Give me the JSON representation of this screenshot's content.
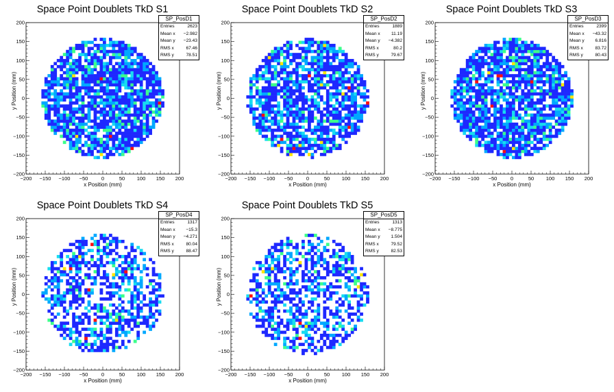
{
  "colors": {
    "cell_palette": [
      "#1e28ff",
      "#00a8ff",
      "#18dcf0",
      "#3cff8c",
      "#ffe600",
      "#ff1010"
    ],
    "axis": "#000000",
    "background": "#ffffff"
  },
  "chart_data": [
    {
      "type": "heatmap",
      "title": "Space Point Doublets TkD S1",
      "xlabel": "x Position (mm)",
      "ylabel": "y Position (mm)",
      "xlim": [
        -200,
        200
      ],
      "ylim": [
        -200,
        200
      ],
      "xticks": [
        -200,
        -150,
        -100,
        -50,
        0,
        50,
        100,
        150,
        200
      ],
      "yticks": [
        -200,
        -150,
        -100,
        -50,
        0,
        50,
        100,
        150,
        200
      ],
      "region": "disk of radius ~160 mm, 8 mm bins",
      "legend": "top-right",
      "stats": {
        "name": "SP_PosD1",
        "rows": [
          {
            "label": "Entries",
            "value": "2623"
          },
          {
            "label": "Mean x",
            "value": "−2.982"
          },
          {
            "label": "Mean y",
            "value": "−23.43"
          },
          {
            "label": "RMS x",
            "value": "67.46"
          },
          {
            "label": "RMS y",
            "value": "78.51"
          }
        ]
      }
    },
    {
      "type": "heatmap",
      "title": "Space Point Doublets TkD S2",
      "xlabel": "x Position (mm)",
      "ylabel": "y Position (mm)",
      "xlim": [
        -200,
        200
      ],
      "ylim": [
        -200,
        200
      ],
      "xticks": [
        -200,
        -150,
        -100,
        -50,
        0,
        50,
        100,
        150,
        200
      ],
      "yticks": [
        -200,
        -150,
        -100,
        -50,
        0,
        50,
        100,
        150,
        200
      ],
      "region": "disk of radius ~160 mm, 8 mm bins",
      "legend": "top-right",
      "stats": {
        "name": "SP_PosD2",
        "rows": [
          {
            "label": "Entries",
            "value": "1889"
          },
          {
            "label": "Mean x",
            "value": "11.19"
          },
          {
            "label": "Mean y",
            "value": "−4.382"
          },
          {
            "label": "RMS x",
            "value": "80.2"
          },
          {
            "label": "RMS y",
            "value": "79.67"
          }
        ]
      }
    },
    {
      "type": "heatmap",
      "title": "Space Point Doublets TkD S3",
      "xlabel": "x Position (mm)",
      "ylabel": "y Position (mm)",
      "xlim": [
        -200,
        200
      ],
      "ylim": [
        -200,
        200
      ],
      "xticks": [
        -200,
        -150,
        -100,
        -50,
        0,
        50,
        100,
        150,
        200
      ],
      "yticks": [
        -200,
        -150,
        -100,
        -50,
        0,
        50,
        100,
        150,
        200
      ],
      "region": "disk of radius ~160 mm, 8 mm bins",
      "legend": "top-right",
      "stats": {
        "name": "SP_PosD3",
        "rows": [
          {
            "label": "Entries",
            "value": "2399"
          },
          {
            "label": "Mean x",
            "value": "−43.32"
          },
          {
            "label": "Mean y",
            "value": "6.816"
          },
          {
            "label": "RMS x",
            "value": "83.72"
          },
          {
            "label": "RMS y",
            "value": "80.43"
          }
        ]
      }
    },
    {
      "type": "heatmap",
      "title": "Space Point Doublets TkD S4",
      "xlabel": "x Position (mm)",
      "ylabel": "y Position (mm)",
      "xlim": [
        -200,
        200
      ],
      "ylim": [
        -200,
        200
      ],
      "xticks": [
        -200,
        -150,
        -100,
        -50,
        0,
        50,
        100,
        150,
        200
      ],
      "yticks": [
        -200,
        -150,
        -100,
        -50,
        0,
        50,
        100,
        150,
        200
      ],
      "region": "disk of radius ~160 mm, 8 mm bins",
      "legend": "top-right",
      "stats": {
        "name": "SP_PosD4",
        "rows": [
          {
            "label": "Entries",
            "value": "1317"
          },
          {
            "label": "Mean x",
            "value": "−15.3"
          },
          {
            "label": "Mean y",
            "value": "−4.271"
          },
          {
            "label": "RMS x",
            "value": "80.04"
          },
          {
            "label": "RMS y",
            "value": "88.47"
          }
        ]
      }
    },
    {
      "type": "heatmap",
      "title": "Space Point Doublets TkD S5",
      "xlabel": "x Position (mm)",
      "ylabel": "y Position (mm)",
      "xlim": [
        -200,
        200
      ],
      "ylim": [
        -200,
        200
      ],
      "xticks": [
        -200,
        -150,
        -100,
        -50,
        0,
        50,
        100,
        150,
        200
      ],
      "yticks": [
        -200,
        -150,
        -100,
        -50,
        0,
        50,
        100,
        150,
        200
      ],
      "region": "disk of radius ~160 mm, 8 mm bins",
      "legend": "top-right",
      "stats": {
        "name": "SP_PosD5",
        "rows": [
          {
            "label": "Entries",
            "value": "1313"
          },
          {
            "label": "Mean x",
            "value": "−8.775"
          },
          {
            "label": "Mean y",
            "value": "1.504"
          },
          {
            "label": "RMS x",
            "value": "79.52"
          },
          {
            "label": "RMS y",
            "value": "82.53"
          }
        ]
      }
    }
  ]
}
